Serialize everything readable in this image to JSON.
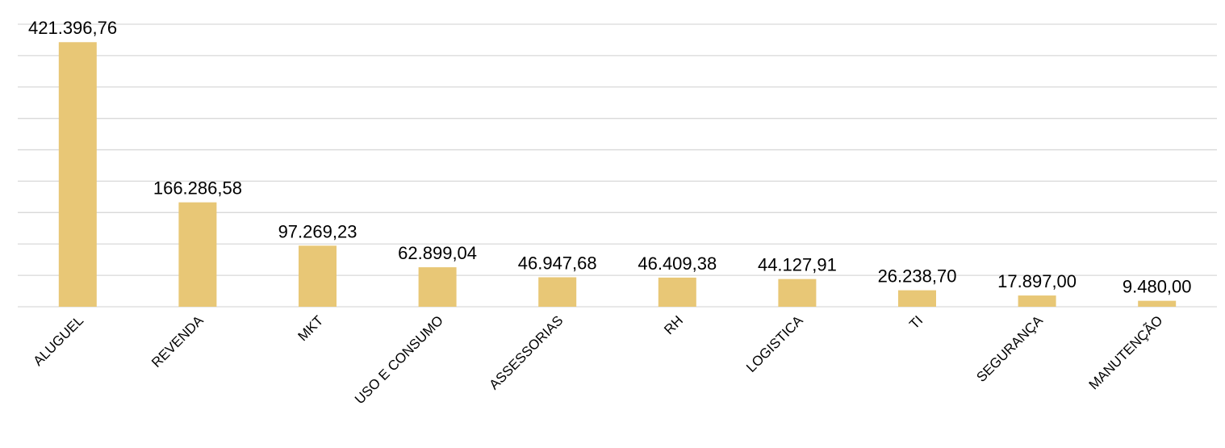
{
  "chart_data": {
    "type": "bar",
    "categories": [
      "ALUGUEL",
      "REVENDA",
      "MKT",
      "USO E CONSUMO",
      "ASSESSORIAS",
      "RH",
      "LOGISTICA",
      "TI",
      "SEGURANÇA",
      "MANUTENÇÃO"
    ],
    "values": [
      421396.76,
      166286.58,
      97269.23,
      62899.04,
      46947.68,
      46409.38,
      44127.91,
      26238.7,
      17897.0,
      9480.0
    ],
    "value_labels": [
      "421.396,76",
      "166.286,58",
      "97.269,23",
      "62.899,04",
      "46.947,68",
      "46.409,38",
      "44.127,91",
      "26.238,70",
      "17.897,00",
      "9.480,00"
    ],
    "ylim": [
      0,
      450000
    ],
    "gridline_step": 50000,
    "grid": true,
    "bar_color": "#e8c776",
    "title": "",
    "xlabel": "",
    "ylabel": ""
  }
}
